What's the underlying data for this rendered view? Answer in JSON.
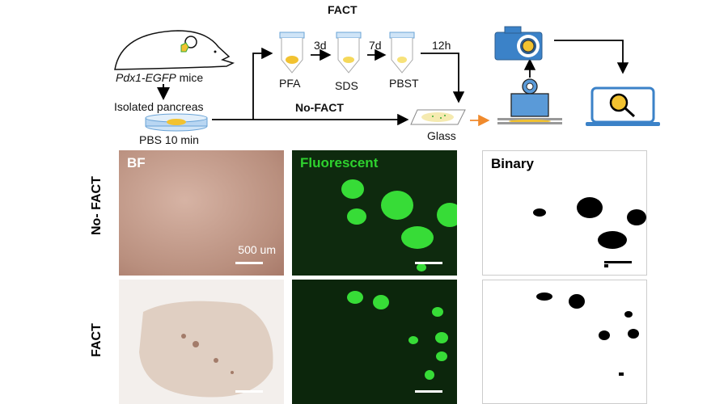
{
  "workflow": {
    "fact_label": "FACT",
    "no_fact_label": "No-FACT",
    "mouse_label_italic": "Pdx1-EGFP",
    "mouse_label_rest": " mice",
    "isolated_label": "Isolated pancreas",
    "pbs_label": "PBS 10 min",
    "tubes": [
      {
        "label": "PFA",
        "duration": "3d"
      },
      {
        "label": "SDS",
        "duration": "7d"
      },
      {
        "label": "PBST",
        "duration": "12h"
      }
    ],
    "glass_label": "Glass",
    "icons": [
      "mouse-icon",
      "petri-dish-icon",
      "tube-icon",
      "glass-slide-icon",
      "weight-press-icon",
      "camera-icon",
      "laptop-magnifier-icon"
    ]
  },
  "panels": {
    "row_labels": [
      "No- FACT",
      "FACT"
    ],
    "column_titles": [
      "BF",
      "Fluorescent",
      "Binary"
    ],
    "scale_bar_label": "500 um"
  },
  "colors": {
    "fluorescent_title": "#2ed12e",
    "accent_orange": "#f08a2c",
    "icon_blue": "#3b82c8"
  }
}
